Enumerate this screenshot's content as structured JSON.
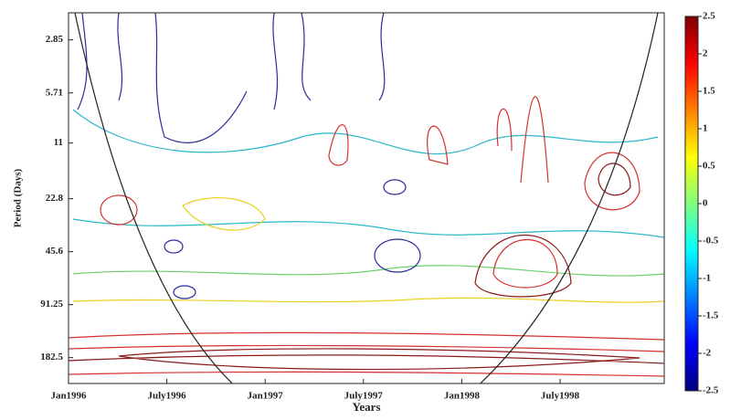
{
  "chart_data": {
    "type": "contour",
    "ylabel": "Period (Days)",
    "xlabel": "Years",
    "categories": [
      "Jan1996",
      "July1996",
      "Jan1997",
      "July1997",
      "Jan1998",
      "July1998"
    ],
    "log_y": true,
    "ylim": [
      2,
      256
    ],
    "yticks": [
      2.85,
      5.71,
      11,
      22.8,
      45.6,
      91.25,
      182.5
    ],
    "colorbar": {
      "lim": [
        -2.5,
        2.5
      ],
      "ticks": [
        2.5,
        2,
        1.5,
        1,
        0.5,
        0,
        -0.5,
        -1,
        -1.5,
        -2,
        -2.5
      ],
      "colors": [
        "#00007f",
        "#0000ff",
        "#007fff",
        "#00ffff",
        "#7fff7f",
        "#ffff00",
        "#ff7f00",
        "#ff0000",
        "#7f0000"
      ]
    }
  }
}
